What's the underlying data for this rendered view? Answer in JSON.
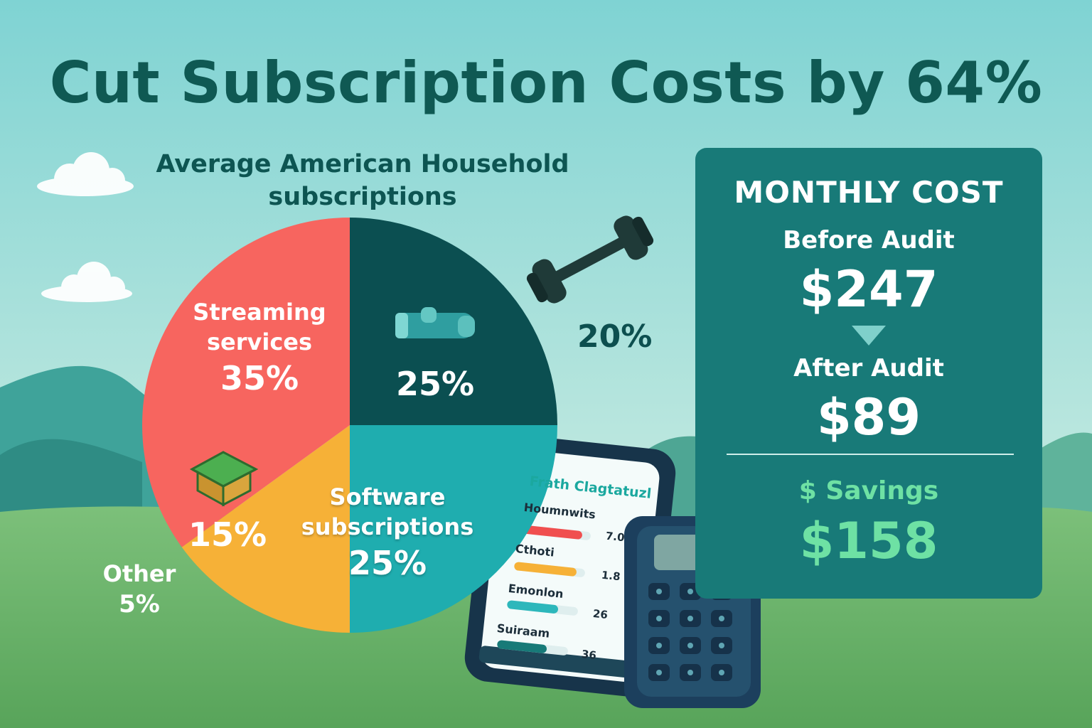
{
  "title": "Cut Subscription Costs by 64%",
  "colors": {
    "streaming": "#f7655f",
    "dark_segment": "#0b4f51",
    "software": "#1fadaf",
    "yellow": "#f6b137",
    "panel": "#187a78",
    "savings": "#6ee1a4"
  },
  "chart_data": {
    "type": "pie",
    "title": [
      "Average American Household",
      "subscriptions"
    ],
    "slices": [
      {
        "name": "Streaming services",
        "label_lines": [
          "Streaming",
          "services"
        ],
        "value": 35,
        "value_label": "35%",
        "color": "#f7655f"
      },
      {
        "name": "",
        "label_lines": [],
        "value": 25,
        "value_label": "25%",
        "color": "#0b4f51",
        "icon": "gloves-icon"
      },
      {
        "name": "Software subscriptions",
        "label_lines": [
          "Software",
          "subscriptions"
        ],
        "value": 25,
        "value_label": "25%",
        "color": "#1fadaf"
      },
      {
        "name": "",
        "label_lines": [],
        "value": 15,
        "value_label": "15%",
        "color": "#f6b137",
        "icon": "box-icon"
      }
    ],
    "outside_labels": [
      {
        "text": "20%",
        "icon": "dumbbell-icon"
      },
      {
        "name": "Other",
        "value_label": "5%"
      }
    ]
  },
  "cost_panel": {
    "heading": "MONTHLY COST",
    "before_label": "Before Audit",
    "before_value": "$247",
    "after_label": "After Audit",
    "after_value": "$89",
    "savings_label": "$ Savings",
    "savings_value": "$158"
  },
  "phone": {
    "title": "Frath Clagtatuzl",
    "rows": [
      {
        "name": "Houmnwits",
        "value": "7.0",
        "color": "#f04f4f",
        "fill": 0.88
      },
      {
        "name": "Cthoti",
        "value": "1.8",
        "color": "#f6b137",
        "fill": 0.88
      },
      {
        "name": "Emonlon",
        "value": "26",
        "color": "#2db7bb",
        "fill": 0.72
      },
      {
        "name": "Suiraam",
        "value": "36",
        "color": "#177a78",
        "fill": 0.7
      }
    ]
  }
}
